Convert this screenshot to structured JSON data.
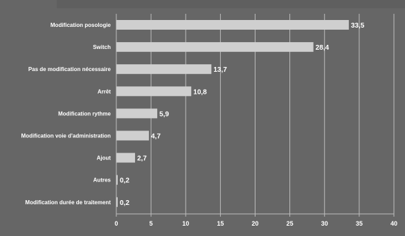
{
  "colors": {
    "background": "#666666",
    "bar": "#cfcfcf",
    "grid": "#bdbdbd",
    "text": "#ffffff"
  },
  "chart_data": {
    "type": "bar",
    "orientation": "horizontal",
    "categories": [
      "Modification posologie",
      "Switch",
      "Pas de modification nécessaire",
      "Arrêt",
      "Modification rythme",
      "Modification voie d'administration",
      "Ajout",
      "Autres",
      "Modification durée de traitement"
    ],
    "values": [
      33.5,
      28.4,
      13.7,
      10.8,
      5.9,
      4.7,
      2.7,
      0.2,
      0.2
    ],
    "value_labels": [
      "33,5",
      "28,4",
      "13,7",
      "10,8",
      "5,9",
      "4,7",
      "2,7",
      "0,2",
      "0,2"
    ],
    "x_ticks": [
      "0",
      "5",
      "10",
      "15",
      "20",
      "25",
      "30",
      "35",
      "40"
    ],
    "xlim": [
      0,
      40
    ],
    "grid": true,
    "title": "",
    "xlabel": "",
    "ylabel": ""
  }
}
